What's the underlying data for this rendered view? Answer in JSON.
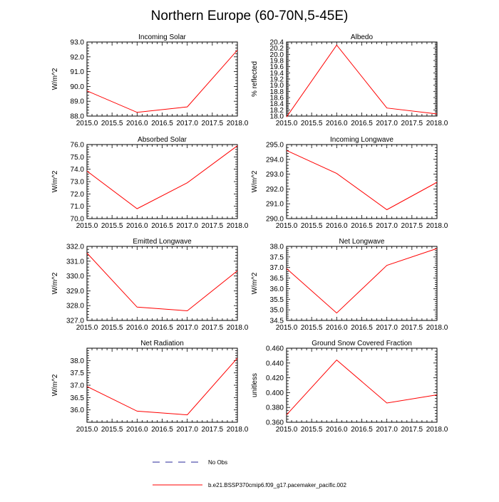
{
  "title": "Northern Europe (60-70N,5-45E)",
  "colors": {
    "model_line": "#ff0000",
    "obs_line": "#2a2a9a",
    "axis": "#000000"
  },
  "legend": {
    "obs_label": "No Obs",
    "model_label": "b.e21.BSSP370cmip6.f09_g17.pacemaker_pacific.002"
  },
  "chart_data": [
    {
      "type": "line",
      "title": "Incoming Solar",
      "ylabel": "W/m^2",
      "xlabel": "",
      "x": [
        2015,
        2016,
        2017,
        2018
      ],
      "series": [
        {
          "name": "b.e21.BSSP370cmip6.f09_g17.pacemaker_pacific.002",
          "values": [
            89.7,
            88.25,
            88.62,
            92.45
          ]
        }
      ],
      "xlim": [
        2015,
        2018
      ],
      "ylim": [
        88.0,
        93.0
      ],
      "xticks": [
        "2015.0",
        "2015.5",
        "2016.0",
        "2016.5",
        "2017.0",
        "2017.5",
        "2018.0"
      ],
      "yticks": [
        "88.0",
        "89.0",
        "90.0",
        "91.0",
        "92.0",
        "93.0"
      ]
    },
    {
      "type": "line",
      "title": "Albedo",
      "ylabel": "% reflected",
      "xlabel": "",
      "x": [
        2015,
        2016,
        2017,
        2018
      ],
      "series": [
        {
          "name": "b.e21.BSSP370cmip6.f09_g17.pacemaker_pacific.002",
          "values": [
            17.97,
            20.3,
            18.26,
            18.07
          ]
        }
      ],
      "xlim": [
        2015,
        2018
      ],
      "ylim": [
        18.0,
        20.4
      ],
      "xticks": [
        "2015.0",
        "2015.5",
        "2016.0",
        "2016.5",
        "2017.0",
        "2017.5",
        "2018.0"
      ],
      "yticks": [
        "18.0",
        "18.2",
        "18.4",
        "18.6",
        "18.8",
        "19.0",
        "19.2",
        "19.4",
        "19.6",
        "19.8",
        "20.0",
        "20.2",
        "20.4"
      ]
    },
    {
      "type": "line",
      "title": "Absorbed Solar",
      "ylabel": "W/m^2",
      "xlabel": "",
      "x": [
        2015,
        2016,
        2017,
        2018
      ],
      "series": [
        {
          "name": "b.e21.BSSP370cmip6.f09_g17.pacemaker_pacific.002",
          "values": [
            73.85,
            70.8,
            72.9,
            75.9
          ]
        }
      ],
      "xlim": [
        2015,
        2018
      ],
      "ylim": [
        70.0,
        76.0
      ],
      "xticks": [
        "2015.0",
        "2015.5",
        "2016.0",
        "2016.5",
        "2017.0",
        "2017.5",
        "2018.0"
      ],
      "yticks": [
        "70.0",
        "71.0",
        "72.0",
        "73.0",
        "74.0",
        "75.0",
        "76.0"
      ]
    },
    {
      "type": "line",
      "title": "Incoming Longwave",
      "ylabel": "W/m^2",
      "xlabel": "",
      "x": [
        2015,
        2016,
        2017,
        2018
      ],
      "series": [
        {
          "name": "b.e21.BSSP370cmip6.f09_g17.pacemaker_pacific.002",
          "values": [
            294.6,
            293.05,
            290.6,
            292.45
          ]
        }
      ],
      "xlim": [
        2015,
        2018
      ],
      "ylim": [
        290.0,
        295.0
      ],
      "xticks": [
        "2015.0",
        "2015.5",
        "2016.0",
        "2016.5",
        "2017.0",
        "2017.5",
        "2018.0"
      ],
      "yticks": [
        "290.0",
        "291.0",
        "292.0",
        "293.0",
        "294.0",
        "295.0"
      ]
    },
    {
      "type": "line",
      "title": "Emitted Longwave",
      "ylabel": "W/m^2",
      "xlabel": "",
      "x": [
        2015,
        2016,
        2017,
        2018
      ],
      "series": [
        {
          "name": "b.e21.BSSP370cmip6.f09_g17.pacemaker_pacific.002",
          "values": [
            331.55,
            327.9,
            327.65,
            330.35
          ]
        }
      ],
      "xlim": [
        2015,
        2018
      ],
      "ylim": [
        327.0,
        332.0
      ],
      "xticks": [
        "2015.0",
        "2015.5",
        "2016.0",
        "2016.5",
        "2017.0",
        "2017.5",
        "2018.0"
      ],
      "yticks": [
        "327.0",
        "328.0",
        "329.0",
        "330.0",
        "331.0",
        "332.0"
      ]
    },
    {
      "type": "line",
      "title": "Net Longwave",
      "ylabel": "W/m^2",
      "xlabel": "",
      "x": [
        2015,
        2016,
        2017,
        2018
      ],
      "series": [
        {
          "name": "b.e21.BSSP370cmip6.f09_g17.pacemaker_pacific.002",
          "values": [
            36.95,
            34.85,
            37.1,
            37.9
          ]
        }
      ],
      "xlim": [
        2015,
        2018
      ],
      "ylim": [
        34.5,
        38.0
      ],
      "xticks": [
        "2015.0",
        "2015.5",
        "2016.0",
        "2016.5",
        "2017.0",
        "2017.5",
        "2018.0"
      ],
      "yticks": [
        "34.5",
        "35.0",
        "35.5",
        "36.0",
        "36.5",
        "37.0",
        "37.5",
        "38.0"
      ]
    },
    {
      "type": "line",
      "title": "Net Radiation",
      "ylabel": "W/m^2",
      "xlabel": "",
      "x": [
        2015,
        2016,
        2017,
        2018
      ],
      "series": [
        {
          "name": "b.e21.BSSP370cmip6.f09_g17.pacemaker_pacific.002",
          "values": [
            36.95,
            35.95,
            35.8,
            38.1
          ]
        }
      ],
      "xlim": [
        2015,
        2018
      ],
      "ylim": [
        35.5,
        38.5
      ],
      "xticks": [
        "2015.0",
        "2015.5",
        "2016.0",
        "2016.5",
        "2017.0",
        "2017.5",
        "2018.0"
      ],
      "yticks": [
        "36.0",
        "36.5",
        "37.0",
        "37.5",
        "38.0"
      ]
    },
    {
      "type": "line",
      "title": "Ground Snow Covered Fraction",
      "ylabel": "unitless",
      "xlabel": "",
      "x": [
        2015,
        2016,
        2017,
        2018
      ],
      "series": [
        {
          "name": "b.e21.BSSP370cmip6.f09_g17.pacemaker_pacific.002",
          "values": [
            0.37,
            0.444,
            0.386,
            0.397
          ]
        }
      ],
      "xlim": [
        2015,
        2018
      ],
      "ylim": [
        0.36,
        0.46
      ],
      "xticks": [
        "2015.0",
        "2015.5",
        "2016.0",
        "2016.5",
        "2017.0",
        "2017.5",
        "2018.0"
      ],
      "yticks": [
        "0.360",
        "0.380",
        "0.400",
        "0.420",
        "0.440",
        "0.460"
      ]
    }
  ]
}
